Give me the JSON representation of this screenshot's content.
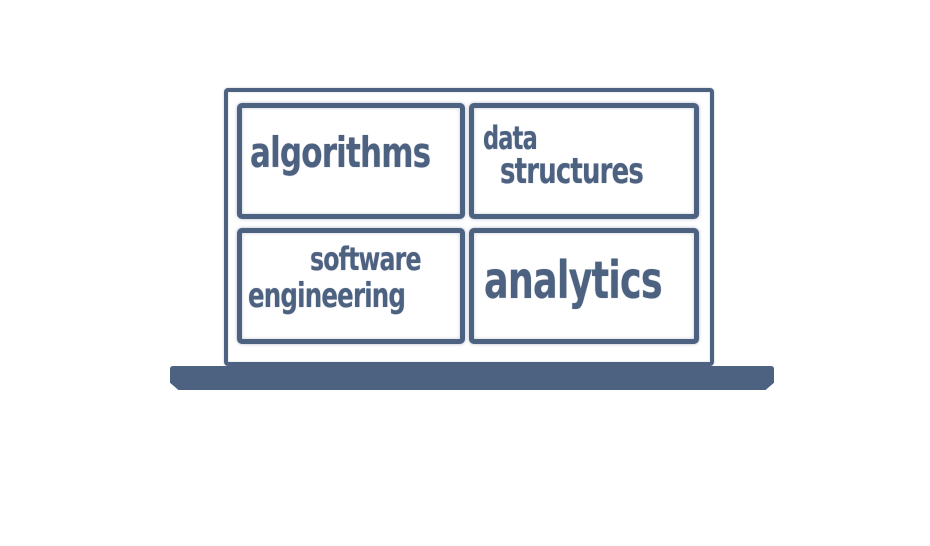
{
  "diagram": {
    "tiles": [
      {
        "lines": [
          "algorithms"
        ]
      },
      {
        "lines": [
          "data",
          "structures"
        ]
      },
      {
        "lines": [
          "software",
          "engineering"
        ]
      },
      {
        "lines": [
          "analytics"
        ]
      }
    ]
  },
  "colors": {
    "line": "#4d6180",
    "background": "#ffffff"
  }
}
